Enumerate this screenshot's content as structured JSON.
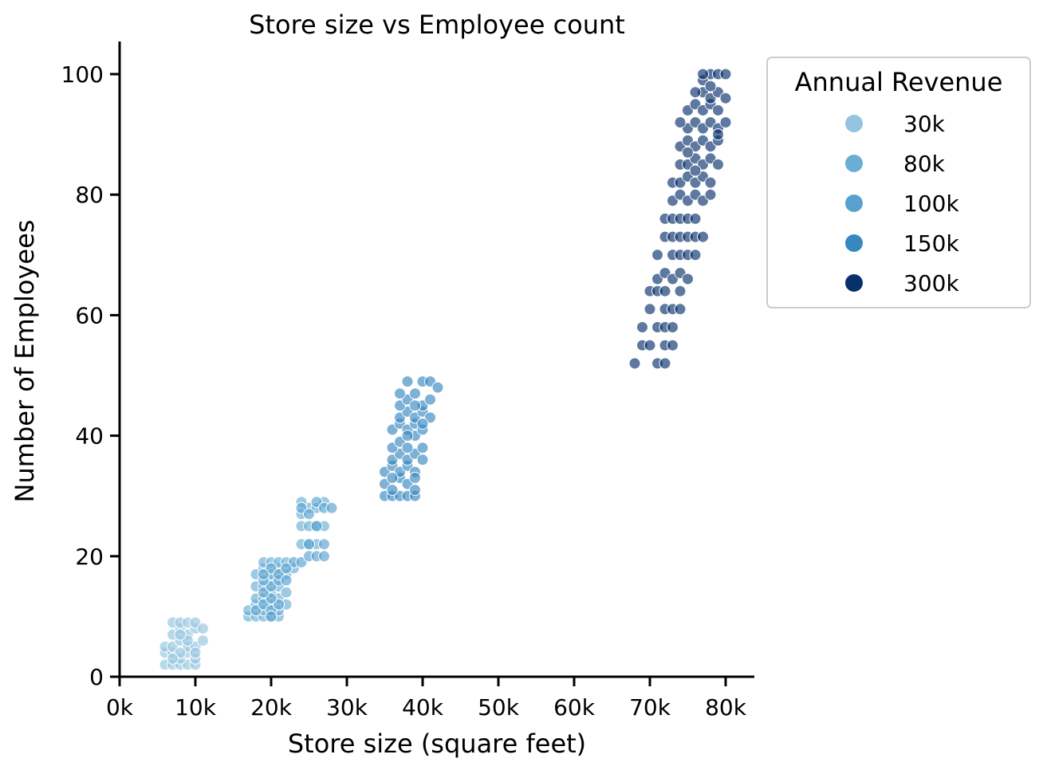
{
  "chart_data": {
    "type": "scatter",
    "title": "Store size vs Employee count",
    "xlabel": "Store size (square feet)",
    "ylabel": "Number of Employees",
    "xlim": [
      0,
      84000
    ],
    "ylim": [
      0,
      105
    ],
    "x_ticks": [
      0,
      10000,
      20000,
      30000,
      40000,
      50000,
      60000,
      70000,
      80000
    ],
    "x_tick_labels": [
      "0k",
      "10k",
      "20k",
      "30k",
      "40k",
      "50k",
      "60k",
      "70k",
      "80k"
    ],
    "y_ticks": [
      0,
      20,
      40,
      60,
      80,
      100
    ],
    "y_tick_labels": [
      "0",
      "20",
      "40",
      "60",
      "80",
      "100"
    ],
    "grid": false,
    "legend": {
      "title": "Annual Revenue",
      "placement": "outside-top-right",
      "entries": [
        {
          "label": "30k",
          "color": "#94c4df"
        },
        {
          "label": "80k",
          "color": "#6aaed6"
        },
        {
          "label": "100k",
          "color": "#58a1cf"
        },
        {
          "label": "150k",
          "color": "#3787c0"
        },
        {
          "label": "300k",
          "color": "#08306b"
        }
      ]
    },
    "series": [
      {
        "name": "30k",
        "color": "#94c4df",
        "points": [
          [
            6000,
            2
          ],
          [
            7000,
            2
          ],
          [
            8000,
            2
          ],
          [
            9000,
            2
          ],
          [
            10000,
            2
          ],
          [
            6000,
            4
          ],
          [
            7000,
            4
          ],
          [
            8000,
            3
          ],
          [
            9000,
            4
          ],
          [
            10000,
            3
          ],
          [
            6000,
            5
          ],
          [
            7000,
            5
          ],
          [
            8000,
            6
          ],
          [
            9000,
            5
          ],
          [
            10000,
            5
          ],
          [
            7000,
            7
          ],
          [
            8000,
            8
          ],
          [
            9000,
            7
          ],
          [
            10000,
            8
          ],
          [
            11000,
            6
          ],
          [
            7000,
            9
          ],
          [
            8000,
            9
          ],
          [
            9000,
            9
          ],
          [
            10000,
            9
          ],
          [
            11000,
            8
          ],
          [
            8000,
            4
          ],
          [
            9000,
            6
          ],
          [
            7000,
            3
          ],
          [
            10000,
            4
          ],
          [
            8000,
            7
          ]
        ]
      },
      {
        "name": "80k",
        "color": "#6aaed6",
        "points": [
          [
            17000,
            10
          ],
          [
            18000,
            10
          ],
          [
            19000,
            10
          ],
          [
            20000,
            10
          ],
          [
            21000,
            10
          ],
          [
            17000,
            11
          ],
          [
            18000,
            12
          ],
          [
            19000,
            11
          ],
          [
            20000,
            12
          ],
          [
            21000,
            11
          ],
          [
            18000,
            13
          ],
          [
            19000,
            13
          ],
          [
            20000,
            14
          ],
          [
            21000,
            13
          ],
          [
            22000,
            12
          ],
          [
            18000,
            15
          ],
          [
            19000,
            15
          ],
          [
            20000,
            16
          ],
          [
            21000,
            15
          ],
          [
            22000,
            14
          ],
          [
            18000,
            17
          ],
          [
            19000,
            18
          ],
          [
            20000,
            17
          ],
          [
            21000,
            18
          ],
          [
            22000,
            17
          ],
          [
            19000,
            19
          ],
          [
            20000,
            19
          ],
          [
            21000,
            19
          ],
          [
            22000,
            19
          ],
          [
            23000,
            18
          ],
          [
            24000,
            22
          ],
          [
            25000,
            22
          ],
          [
            26000,
            22
          ],
          [
            24000,
            25
          ],
          [
            25000,
            25
          ],
          [
            26000,
            25
          ],
          [
            27000,
            25
          ],
          [
            24000,
            27
          ],
          [
            25000,
            28
          ],
          [
            26000,
            28
          ],
          [
            27000,
            29
          ],
          [
            24000,
            29
          ]
        ]
      },
      {
        "name": "100k",
        "color": "#58a1cf",
        "points": [
          [
            18000,
            11
          ],
          [
            19000,
            12
          ],
          [
            20000,
            11
          ],
          [
            21000,
            12
          ],
          [
            20000,
            13
          ],
          [
            19000,
            14
          ],
          [
            20000,
            15
          ],
          [
            21000,
            16
          ],
          [
            19000,
            16
          ],
          [
            20000,
            18
          ],
          [
            21000,
            17
          ],
          [
            22000,
            16
          ],
          [
            23000,
            19
          ],
          [
            24000,
            19
          ],
          [
            22000,
            18
          ],
          [
            25000,
            20
          ],
          [
            26000,
            20
          ],
          [
            27000,
            20
          ],
          [
            25000,
            22
          ],
          [
            27000,
            22
          ],
          [
            26000,
            25
          ],
          [
            24000,
            28
          ],
          [
            26000,
            29
          ],
          [
            27000,
            28
          ],
          [
            28000,
            28
          ],
          [
            25000,
            27
          ],
          [
            19000,
            17
          ],
          [
            20000,
            10
          ]
        ]
      },
      {
        "name": "150k",
        "color": "#3787c0",
        "points": [
          [
            35000,
            30
          ],
          [
            36000,
            30
          ],
          [
            37000,
            30
          ],
          [
            38000,
            30
          ],
          [
            39000,
            30
          ],
          [
            35000,
            32
          ],
          [
            36000,
            31
          ],
          [
            37000,
            33
          ],
          [
            38000,
            32
          ],
          [
            39000,
            31
          ],
          [
            35000,
            34
          ],
          [
            36000,
            35
          ],
          [
            37000,
            34
          ],
          [
            38000,
            35
          ],
          [
            39000,
            34
          ],
          [
            36000,
            36
          ],
          [
            37000,
            37
          ],
          [
            38000,
            36
          ],
          [
            39000,
            37
          ],
          [
            40000,
            36
          ],
          [
            36000,
            38
          ],
          [
            37000,
            39
          ],
          [
            38000,
            38
          ],
          [
            39000,
            40
          ],
          [
            40000,
            38
          ],
          [
            36000,
            41
          ],
          [
            37000,
            42
          ],
          [
            38000,
            41
          ],
          [
            39000,
            42
          ],
          [
            40000,
            41
          ],
          [
            37000,
            43
          ],
          [
            38000,
            44
          ],
          [
            39000,
            43
          ],
          [
            40000,
            44
          ],
          [
            41000,
            43
          ],
          [
            37000,
            45
          ],
          [
            38000,
            46
          ],
          [
            39000,
            47
          ],
          [
            40000,
            45
          ],
          [
            41000,
            46
          ],
          [
            37000,
            47
          ],
          [
            38000,
            49
          ],
          [
            40000,
            49
          ],
          [
            41000,
            49
          ],
          [
            42000,
            48
          ],
          [
            36000,
            33
          ],
          [
            39000,
            33
          ],
          [
            38000,
            40
          ],
          [
            40000,
            42
          ],
          [
            39000,
            45
          ]
        ]
      },
      {
        "name": "300k",
        "color": "#08306b",
        "points": [
          [
            68000,
            52
          ],
          [
            71000,
            52
          ],
          [
            72000,
            52
          ],
          [
            69000,
            55
          ],
          [
            70000,
            55
          ],
          [
            72000,
            55
          ],
          [
            73000,
            55
          ],
          [
            69000,
            58
          ],
          [
            71000,
            58
          ],
          [
            72000,
            58
          ],
          [
            73000,
            58
          ],
          [
            70000,
            61
          ],
          [
            72000,
            61
          ],
          [
            73000,
            61
          ],
          [
            74000,
            61
          ],
          [
            70000,
            64
          ],
          [
            71000,
            64
          ],
          [
            72000,
            64
          ],
          [
            74000,
            64
          ],
          [
            71000,
            66
          ],
          [
            72000,
            67
          ],
          [
            73000,
            66
          ],
          [
            74000,
            67
          ],
          [
            75000,
            66
          ],
          [
            71000,
            70
          ],
          [
            73000,
            70
          ],
          [
            74000,
            70
          ],
          [
            75000,
            70
          ],
          [
            76000,
            70
          ],
          [
            72000,
            73
          ],
          [
            73000,
            73
          ],
          [
            74000,
            73
          ],
          [
            75000,
            73
          ],
          [
            76000,
            73
          ],
          [
            77000,
            73
          ],
          [
            72000,
            76
          ],
          [
            73000,
            76
          ],
          [
            74000,
            76
          ],
          [
            75000,
            76
          ],
          [
            76000,
            76
          ],
          [
            73000,
            79
          ],
          [
            74000,
            80
          ],
          [
            75000,
            79
          ],
          [
            76000,
            80
          ],
          [
            77000,
            79
          ],
          [
            78000,
            80
          ],
          [
            73000,
            82
          ],
          [
            74000,
            82
          ],
          [
            75000,
            83
          ],
          [
            76000,
            82
          ],
          [
            77000,
            83
          ],
          [
            78000,
            82
          ],
          [
            74000,
            85
          ],
          [
            75000,
            85
          ],
          [
            76000,
            86
          ],
          [
            77000,
            85
          ],
          [
            78000,
            86
          ],
          [
            79000,
            85
          ],
          [
            74000,
            88
          ],
          [
            75000,
            89
          ],
          [
            76000,
            88
          ],
          [
            77000,
            89
          ],
          [
            78000,
            88
          ],
          [
            79000,
            89
          ],
          [
            75000,
            91
          ],
          [
            76000,
            92
          ],
          [
            77000,
            91
          ],
          [
            78000,
            92
          ],
          [
            79000,
            91
          ],
          [
            80000,
            92
          ],
          [
            75000,
            94
          ],
          [
            76000,
            95
          ],
          [
            77000,
            94
          ],
          [
            78000,
            95
          ],
          [
            79000,
            94
          ],
          [
            77000,
            97
          ],
          [
            78000,
            96
          ],
          [
            79000,
            97
          ],
          [
            80000,
            96
          ],
          [
            77000,
            99
          ],
          [
            78000,
            100
          ],
          [
            79000,
            100
          ],
          [
            80000,
            100
          ],
          [
            77000,
            100
          ],
          [
            76000,
            84
          ],
          [
            75000,
            87
          ],
          [
            79000,
            90
          ],
          [
            76000,
            97
          ],
          [
            78000,
            98
          ],
          [
            74000,
            92
          ]
        ]
      }
    ]
  }
}
